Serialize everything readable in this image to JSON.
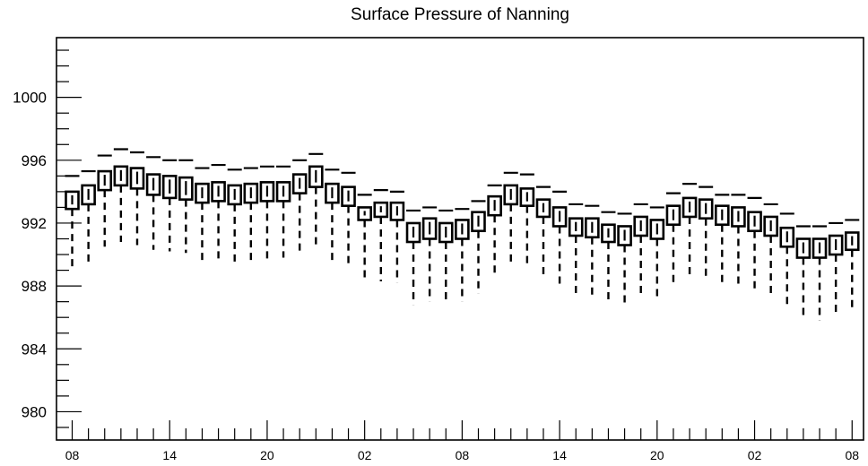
{
  "chart_data": {
    "type": "box",
    "title": "Surface Pressure of Nanning",
    "xlabel": "",
    "ylabel": "",
    "ylim": [
      978.2,
      1003.8
    ],
    "yticks": [
      980,
      984,
      988,
      992,
      996,
      1000
    ],
    "xtick_labels": [
      "08",
      "14",
      "20",
      "02",
      "08",
      "14",
      "20",
      "02",
      "08"
    ],
    "xtick_hours": [
      0,
      6,
      12,
      18,
      24,
      30,
      36,
      42,
      48
    ],
    "grid": false,
    "legend": "none",
    "boxes": [
      {
        "hour": 0,
        "whisker_low": 989.0,
        "q1": 992.9,
        "q3": 994.0,
        "whisker_high": 995.0
      },
      {
        "hour": 1,
        "whisker_low": 989.4,
        "q1": 993.2,
        "q3": 994.4,
        "whisker_high": 995.3
      },
      {
        "hour": 2,
        "whisker_low": 990.5,
        "q1": 994.1,
        "q3": 995.3,
        "whisker_high": 996.3
      },
      {
        "hour": 3,
        "whisker_low": 990.8,
        "q1": 994.4,
        "q3": 995.6,
        "whisker_high": 996.7
      },
      {
        "hour": 4,
        "whisker_low": 990.6,
        "q1": 994.2,
        "q3": 995.5,
        "whisker_high": 996.5
      },
      {
        "hour": 5,
        "whisker_low": 990.3,
        "q1": 993.8,
        "q3": 995.1,
        "whisker_high": 996.2
      },
      {
        "hour": 6,
        "whisker_low": 990.2,
        "q1": 993.6,
        "q3": 995.0,
        "whisker_high": 996.0
      },
      {
        "hour": 7,
        "whisker_low": 990.1,
        "q1": 993.5,
        "q3": 994.9,
        "whisker_high": 996.0
      },
      {
        "hour": 8,
        "whisker_low": 989.6,
        "q1": 993.3,
        "q3": 994.5,
        "whisker_high": 995.5
      },
      {
        "hour": 9,
        "whisker_low": 989.7,
        "q1": 993.4,
        "q3": 994.6,
        "whisker_high": 995.7
      },
      {
        "hour": 10,
        "whisker_low": 989.5,
        "q1": 993.2,
        "q3": 994.4,
        "whisker_high": 995.4
      },
      {
        "hour": 11,
        "whisker_low": 989.6,
        "q1": 993.3,
        "q3": 994.5,
        "whisker_high": 995.5
      },
      {
        "hour": 12,
        "whisker_low": 989.7,
        "q1": 993.4,
        "q3": 994.6,
        "whisker_high": 995.6
      },
      {
        "hour": 13,
        "whisker_low": 989.8,
        "q1": 993.4,
        "q3": 994.6,
        "whisker_high": 995.6
      },
      {
        "hour": 14,
        "whisker_low": 990.1,
        "q1": 993.9,
        "q3": 995.1,
        "whisker_high": 996.0
      },
      {
        "hour": 15,
        "whisker_low": 990.4,
        "q1": 994.3,
        "q3": 995.6,
        "whisker_high": 996.4
      },
      {
        "hour": 16,
        "whisker_low": 989.4,
        "q1": 993.3,
        "q3": 994.5,
        "whisker_high": 995.4
      },
      {
        "hour": 17,
        "whisker_low": 989.3,
        "q1": 993.1,
        "q3": 994.3,
        "whisker_high": 995.2
      },
      {
        "hour": 18,
        "whisker_low": 988.4,
        "q1": 992.2,
        "q3": 993.0,
        "whisker_high": 993.8
      },
      {
        "hour": 19,
        "whisker_low": 988.3,
        "q1": 992.4,
        "q3": 993.3,
        "whisker_high": 994.1
      },
      {
        "hour": 20,
        "whisker_low": 988.2,
        "q1": 992.2,
        "q3": 993.3,
        "whisker_high": 994.0
      },
      {
        "hour": 21,
        "whisker_low": 986.8,
        "q1": 990.8,
        "q3": 992.0,
        "whisker_high": 992.8
      },
      {
        "hour": 22,
        "whisker_low": 987.0,
        "q1": 991.0,
        "q3": 992.3,
        "whisker_high": 993.0
      },
      {
        "hour": 23,
        "whisker_low": 986.9,
        "q1": 990.8,
        "q3": 992.0,
        "whisker_high": 992.8
      },
      {
        "hour": 24,
        "whisker_low": 987.0,
        "q1": 991.0,
        "q3": 992.2,
        "whisker_high": 992.9
      },
      {
        "hour": 25,
        "whisker_low": 987.5,
        "q1": 991.5,
        "q3": 992.7,
        "whisker_high": 993.4
      },
      {
        "hour": 26,
        "whisker_low": 988.6,
        "q1": 992.5,
        "q3": 993.7,
        "whisker_high": 994.4
      },
      {
        "hour": 27,
        "whisker_low": 989.4,
        "q1": 993.2,
        "q3": 994.4,
        "whisker_high": 995.2
      },
      {
        "hour": 28,
        "whisker_low": 989.3,
        "q1": 993.1,
        "q3": 994.2,
        "whisker_high": 995.1
      },
      {
        "hour": 29,
        "whisker_low": 988.6,
        "q1": 992.4,
        "q3": 993.5,
        "whisker_high": 994.3
      },
      {
        "hour": 30,
        "whisker_low": 988.0,
        "q1": 991.8,
        "q3": 993.0,
        "whisker_high": 994.0
      },
      {
        "hour": 31,
        "whisker_low": 987.4,
        "q1": 991.2,
        "q3": 992.3,
        "whisker_high": 993.2
      },
      {
        "hour": 32,
        "whisker_low": 987.3,
        "q1": 991.1,
        "q3": 992.3,
        "whisker_high": 993.1
      },
      {
        "hour": 33,
        "whisker_low": 986.9,
        "q1": 990.8,
        "q3": 991.9,
        "whisker_high": 992.7
      },
      {
        "hour": 34,
        "whisker_low": 986.7,
        "q1": 990.6,
        "q3": 991.8,
        "whisker_high": 992.6
      },
      {
        "hour": 35,
        "whisker_low": 987.3,
        "q1": 991.2,
        "q3": 992.4,
        "whisker_high": 993.2
      },
      {
        "hour": 36,
        "whisker_low": 987.1,
        "q1": 991.0,
        "q3": 992.2,
        "whisker_high": 993.0
      },
      {
        "hour": 37,
        "whisker_low": 988.0,
        "q1": 991.9,
        "q3": 993.1,
        "whisker_high": 993.9
      },
      {
        "hour": 38,
        "whisker_low": 988.5,
        "q1": 992.4,
        "q3": 993.6,
        "whisker_high": 994.5
      },
      {
        "hour": 39,
        "whisker_low": 988.4,
        "q1": 992.3,
        "q3": 993.5,
        "whisker_high": 994.3
      },
      {
        "hour": 40,
        "whisker_low": 988.0,
        "q1": 991.9,
        "q3": 993.1,
        "whisker_high": 993.8
      },
      {
        "hour": 41,
        "whisker_low": 987.9,
        "q1": 991.8,
        "q3": 993.0,
        "whisker_high": 993.8
      },
      {
        "hour": 42,
        "whisker_low": 987.6,
        "q1": 991.5,
        "q3": 992.7,
        "whisker_high": 993.6
      },
      {
        "hour": 43,
        "whisker_low": 987.3,
        "q1": 991.2,
        "q3": 992.4,
        "whisker_high": 993.2
      },
      {
        "hour": 44,
        "whisker_low": 986.6,
        "q1": 990.5,
        "q3": 991.7,
        "whisker_high": 992.6
      },
      {
        "hour": 45,
        "whisker_low": 986.0,
        "q1": 989.8,
        "q3": 991.0,
        "whisker_high": 991.8
      },
      {
        "hour": 46,
        "whisker_low": 985.8,
        "q1": 989.8,
        "q3": 991.0,
        "whisker_high": 991.8
      },
      {
        "hour": 47,
        "whisker_low": 986.2,
        "q1": 990.0,
        "q3": 991.2,
        "whisker_high": 992.0
      },
      {
        "hour": 48,
        "whisker_low": 986.4,
        "q1": 990.3,
        "q3": 991.4,
        "whisker_high": 992.2
      }
    ]
  }
}
